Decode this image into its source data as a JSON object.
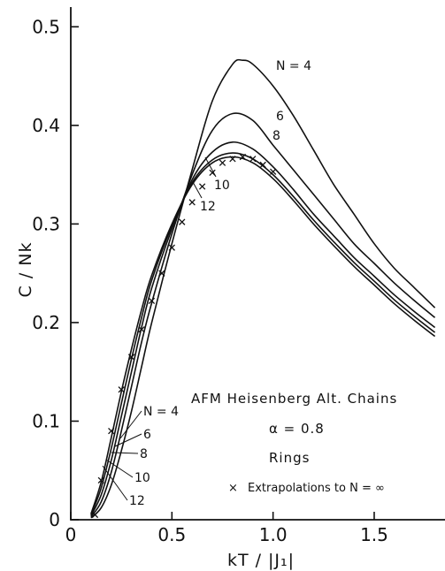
{
  "chart_data": {
    "type": "line",
    "xlabel": "kT / |J₁|",
    "ylabel": "C / Nk",
    "xlim": [
      0,
      1.85
    ],
    "ylim": [
      0,
      0.52
    ],
    "x_ticks": [
      {
        "value": 0,
        "label": "0"
      },
      {
        "value": 0.5,
        "label": "0.5"
      },
      {
        "value": 1.0,
        "label": "1.0"
      },
      {
        "value": 1.5,
        "label": "1.5"
      }
    ],
    "y_ticks": [
      {
        "value": 0,
        "label": "0"
      },
      {
        "value": 0.1,
        "label": "0.1"
      },
      {
        "value": 0.2,
        "label": "0.2"
      },
      {
        "value": 0.3,
        "label": "0.3"
      },
      {
        "value": 0.4,
        "label": "0.4"
      },
      {
        "value": 0.5,
        "label": "0.5"
      }
    ],
    "grid": false,
    "series": [
      {
        "name": "N=4",
        "label_top": "N = 4",
        "label_bottom": "N = 4",
        "x": [
          0.1,
          0.15,
          0.2,
          0.25,
          0.3,
          0.35,
          0.4,
          0.5,
          0.6,
          0.7,
          0.8,
          0.85,
          0.9,
          1.0,
          1.1,
          1.2,
          1.3,
          1.4,
          1.5,
          1.6,
          1.7,
          1.8
        ],
        "y": [
          0.002,
          0.012,
          0.035,
          0.07,
          0.11,
          0.155,
          0.2,
          0.28,
          0.355,
          0.425,
          0.462,
          0.466,
          0.462,
          0.44,
          0.41,
          0.375,
          0.34,
          0.31,
          0.28,
          0.255,
          0.235,
          0.215
        ]
      },
      {
        "name": "6",
        "label_top": "6",
        "label_bottom": "6",
        "x": [
          0.1,
          0.15,
          0.2,
          0.25,
          0.3,
          0.35,
          0.4,
          0.5,
          0.6,
          0.7,
          0.8,
          0.9,
          1.0,
          1.1,
          1.2,
          1.3,
          1.4,
          1.5,
          1.6,
          1.7,
          1.8
        ],
        "y": [
          0.003,
          0.018,
          0.048,
          0.09,
          0.135,
          0.18,
          0.22,
          0.29,
          0.35,
          0.395,
          0.412,
          0.405,
          0.38,
          0.355,
          0.33,
          0.305,
          0.28,
          0.26,
          0.24,
          0.222,
          0.205
        ]
      },
      {
        "name": "8",
        "label_top": "8",
        "label_bottom": "8",
        "x": [
          0.1,
          0.15,
          0.2,
          0.25,
          0.3,
          0.35,
          0.4,
          0.5,
          0.6,
          0.7,
          0.8,
          0.9,
          1.0,
          1.1,
          1.2,
          1.3,
          1.4,
          1.5,
          1.6,
          1.7,
          1.8
        ],
        "y": [
          0.004,
          0.025,
          0.06,
          0.105,
          0.15,
          0.195,
          0.235,
          0.295,
          0.345,
          0.373,
          0.383,
          0.376,
          0.358,
          0.335,
          0.31,
          0.288,
          0.266,
          0.247,
          0.228,
          0.211,
          0.195
        ]
      },
      {
        "name": "10",
        "label_top": "10",
        "label_bottom": "10",
        "x": [
          0.1,
          0.15,
          0.2,
          0.25,
          0.3,
          0.35,
          0.4,
          0.5,
          0.6,
          0.7,
          0.8,
          0.9,
          1.0,
          1.1,
          1.2,
          1.3,
          1.4,
          1.5,
          1.6,
          1.7,
          1.8
        ],
        "y": [
          0.005,
          0.032,
          0.072,
          0.118,
          0.163,
          0.205,
          0.243,
          0.298,
          0.342,
          0.365,
          0.372,
          0.366,
          0.35,
          0.328,
          0.304,
          0.282,
          0.261,
          0.242,
          0.223,
          0.206,
          0.19
        ]
      },
      {
        "name": "12",
        "label_top": "12",
        "label_bottom": "12",
        "x": [
          0.1,
          0.15,
          0.2,
          0.25,
          0.3,
          0.35,
          0.4,
          0.5,
          0.6,
          0.7,
          0.8,
          0.9,
          1.0,
          1.1,
          1.2,
          1.3,
          1.4,
          1.5,
          1.6,
          1.7,
          1.8
        ],
        "y": [
          0.006,
          0.038,
          0.083,
          0.13,
          0.173,
          0.213,
          0.248,
          0.3,
          0.34,
          0.362,
          0.368,
          0.362,
          0.346,
          0.324,
          0.3,
          0.278,
          0.257,
          0.238,
          0.219,
          0.202,
          0.186
        ]
      }
    ],
    "extrapolations": {
      "x": [
        0.12,
        0.15,
        0.2,
        0.25,
        0.3,
        0.35,
        0.4,
        0.45,
        0.5,
        0.55,
        0.6,
        0.65,
        0.7,
        0.75,
        0.8,
        0.85,
        0.9,
        0.95,
        1.0
      ],
      "y": [
        0.005,
        0.04,
        0.09,
        0.132,
        0.165,
        0.193,
        0.222,
        0.25,
        0.276,
        0.302,
        0.322,
        0.338,
        0.352,
        0.362,
        0.366,
        0.368,
        0.366,
        0.36,
        0.353
      ]
    },
    "annotations": {
      "title_line": "AFM Heisenberg Alt. Chains",
      "alpha_line": "α = 0.8",
      "rings_line": "Rings",
      "legend_entry": "Extrapolations to N = ∞"
    }
  }
}
